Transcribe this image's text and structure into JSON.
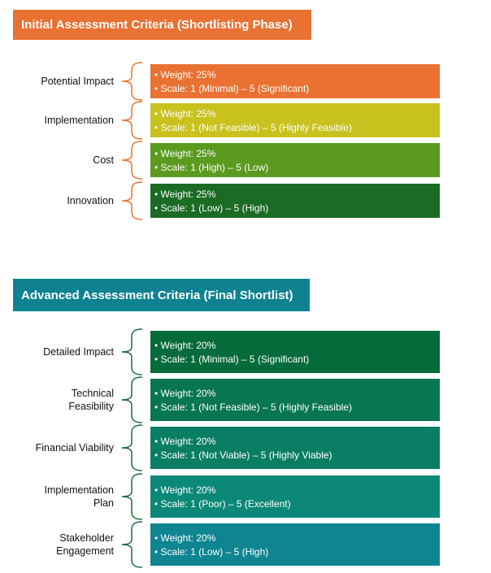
{
  "sections": [
    {
      "title": "Initial Assessment Criteria (Shortlisting Phase)",
      "header_color": "#E97132",
      "brace_color": "#E97132",
      "items": [
        {
          "label": "Potential Impact",
          "weight": "Weight: 25%",
          "scale": "Scale: 1 (Minimal) – 5 (Significant)",
          "color": "#E97132"
        },
        {
          "label": "Implementation",
          "weight": "Weight: 25%",
          "scale": "Scale: 1 (Not Feasible) – 5 (Highly Feasible)",
          "color": "#C9C11E"
        },
        {
          "label": "Cost",
          "weight": "Weight: 25%",
          "scale": "Scale: 1 (High) – 5 (Low)",
          "color": "#5A9A1F"
        },
        {
          "label": "Innovation",
          "weight": "Weight: 25%",
          "scale": "Scale: 1 (Low) – 5 (High)",
          "color": "#1B6B25"
        }
      ]
    },
    {
      "title": "Advanced Assessment Criteria (Final Shortlist)",
      "header_color": "#0E8290",
      "brace_color": "#1B6B3A",
      "items": [
        {
          "label": "Detailed Impact",
          "weight": "Weight: 20%",
          "scale": "Scale: 1 (Minimal) – 5 (Significant)",
          "color": "#066B3A"
        },
        {
          "label": "Technical Feasibility",
          "weight": "Weight: 20%",
          "scale": "Scale: 1 (Not Feasible) – 5 (Highly Feasible)",
          "color": "#08764E"
        },
        {
          "label": "Financial Viability",
          "weight": "Weight: 20%",
          "scale": "Scale: 1 (Not Viable) – 5 (Highly Viable)",
          "color": "#0A7E64"
        },
        {
          "label": "Implementation Plan",
          "weight": "Weight: 20%",
          "scale": "Scale: 1 (Poor) – 5 (Excellent)",
          "color": "#0C8878"
        },
        {
          "label": "Stakeholder Engagement",
          "weight": "Weight: 20%",
          "scale": "Scale: 1 (Low) – 5 (High)",
          "color": "#0E8591"
        }
      ]
    }
  ]
}
